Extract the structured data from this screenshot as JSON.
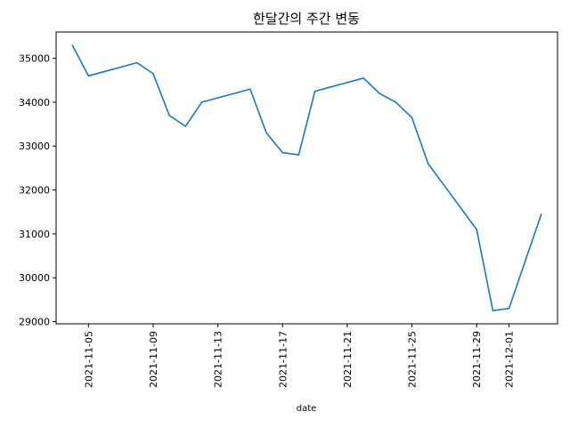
{
  "chart_data": {
    "type": "line",
    "title": "한달간의 주간 변동",
    "xlabel": "date",
    "ylabel": "",
    "x_ticks": [
      "2021-11-05",
      "2021-11-09",
      "2021-11-13",
      "2021-11-17",
      "2021-11-21",
      "2021-11-25",
      "2021-11-29",
      "2021-12-01"
    ],
    "y_ticks": [
      29000,
      30000,
      31000,
      32000,
      33000,
      34000,
      35000
    ],
    "x_range": [
      "2021-11-03",
      "2021-12-04"
    ],
    "ylim": [
      28950,
      35600
    ],
    "grid": false,
    "line_color": "#1f77b4",
    "series": [
      {
        "x": [
          "2021-11-04",
          "2021-11-05",
          "2021-11-08",
          "2021-11-09",
          "2021-11-10",
          "2021-11-11",
          "2021-11-12",
          "2021-11-15",
          "2021-11-16",
          "2021-11-17",
          "2021-11-18",
          "2021-11-19",
          "2021-11-22",
          "2021-11-23",
          "2021-11-24",
          "2021-11-25",
          "2021-11-26",
          "2021-11-29",
          "2021-11-30",
          "2021-12-01",
          "2021-12-03"
        ],
        "y": [
          35300,
          34600,
          34900,
          34650,
          33700,
          33450,
          34000,
          34300,
          33300,
          32850,
          32800,
          34250,
          34550,
          34200,
          34000,
          33650,
          32600,
          31100,
          29250,
          29300,
          31450
        ]
      }
    ]
  }
}
